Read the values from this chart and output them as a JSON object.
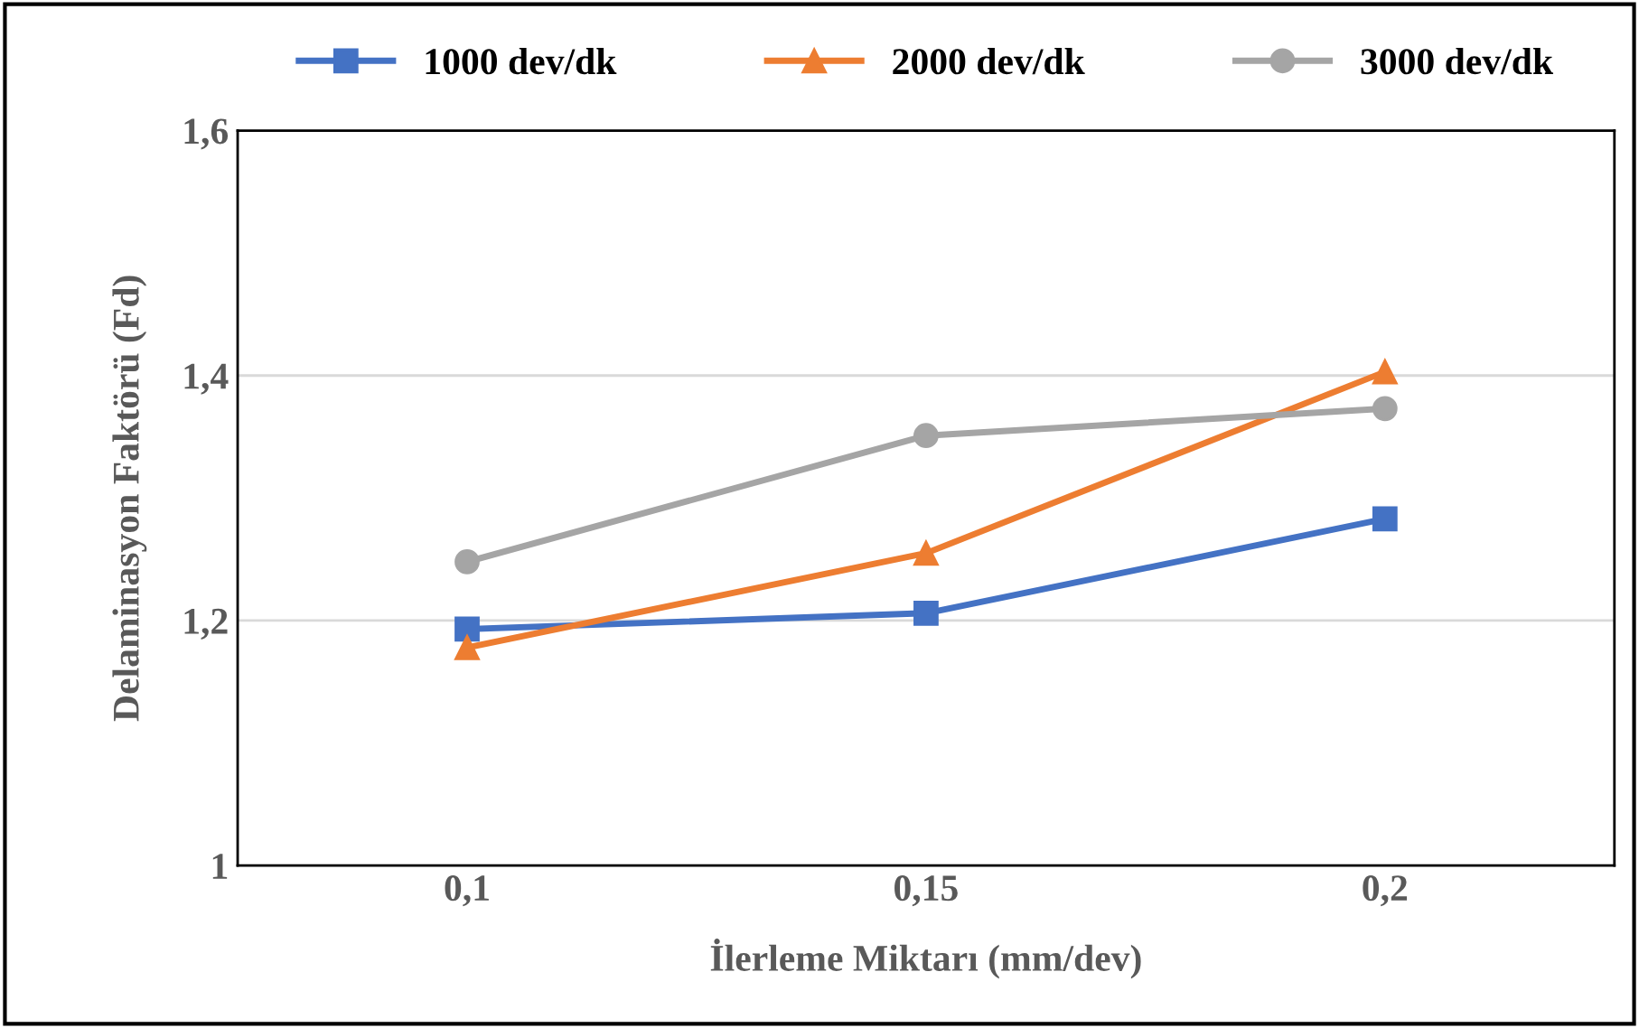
{
  "chart_data": {
    "type": "line",
    "xlabel": "İlerleme Miktarı (mm/dev)",
    "ylabel": "Delaminasyon Faktörü (Fd)",
    "categories": [
      "0,1",
      "0,15",
      "0,2"
    ],
    "series": [
      {
        "name": "1000 dev/dk",
        "color": "#4472c4",
        "marker": "square",
        "values": [
          1.193,
          1.206,
          1.283
        ]
      },
      {
        "name": "2000 dev/dk",
        "color": "#ed7d31",
        "marker": "triangle",
        "values": [
          1.178,
          1.255,
          1.403
        ]
      },
      {
        "name": "3000 dev/dk",
        "color": "#a5a5a5",
        "marker": "circle",
        "values": [
          1.248,
          1.351,
          1.373
        ]
      }
    ],
    "ylim": [
      1,
      1.6
    ],
    "yticks": [
      1,
      {
        "value": 1.2,
        "label": "1,2"
      },
      {
        "value": 1.4,
        "label": "1,4"
      },
      {
        "value": 1.6,
        "label": "1,6"
      }
    ],
    "grid": "y",
    "legend": "top",
    "line_style": "solid"
  }
}
